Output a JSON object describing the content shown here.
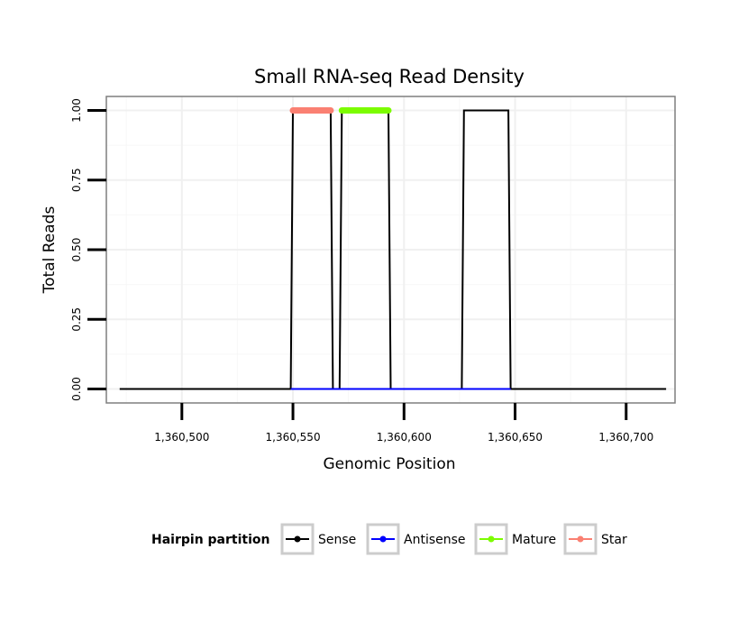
{
  "chart_data": {
    "type": "line",
    "title": "Small RNA-seq Read Density",
    "xlabel": "Genomic Position",
    "ylabel": "Total Reads",
    "xlim": [
      1360466,
      1360722
    ],
    "ylim": [
      -0.05,
      1.05
    ],
    "x_ticks": [
      1360500,
      1360550,
      1360600,
      1360650,
      1360700
    ],
    "x_tick_labels": [
      "1,360,500",
      "1,360,550",
      "1,360,600",
      "1,360,650",
      "1,360,700"
    ],
    "y_ticks": [
      0,
      0.25,
      0.5,
      0.75,
      1
    ],
    "y_tick_labels": [
      "0.00",
      "0.25",
      "0.50",
      "0.75",
      "1.00"
    ],
    "grid": true,
    "legend": {
      "title": "Hairpin partition",
      "position": "bottom",
      "entries": [
        {
          "name": "Sense",
          "color": "#000000"
        },
        {
          "name": "Antisense",
          "color": "#0000ff"
        },
        {
          "name": "Mature",
          "color": "#7cfc00"
        },
        {
          "name": "Star",
          "color": "#fa8072"
        }
      ]
    },
    "series": [
      {
        "name": "Sense",
        "color": "#000000",
        "x": [
          1360472,
          1360549,
          1360550,
          1360567,
          1360568,
          1360571,
          1360572,
          1360593,
          1360594,
          1360626,
          1360627,
          1360647,
          1360648,
          1360718
        ],
        "y": [
          0,
          0,
          1,
          1,
          0,
          0,
          1,
          1,
          0,
          0,
          1,
          1,
          0,
          0
        ]
      },
      {
        "name": "Antisense",
        "color": "#0000ff",
        "x": [
          1360549,
          1360648
        ],
        "y": [
          0,
          0
        ]
      },
      {
        "name": "Mature",
        "color": "#7cfc00",
        "x": [
          1360572,
          1360593
        ],
        "y": [
          1,
          1
        ]
      },
      {
        "name": "Star",
        "color": "#fa8072",
        "x": [
          1360550,
          1360567
        ],
        "y": [
          1,
          1
        ]
      }
    ]
  }
}
